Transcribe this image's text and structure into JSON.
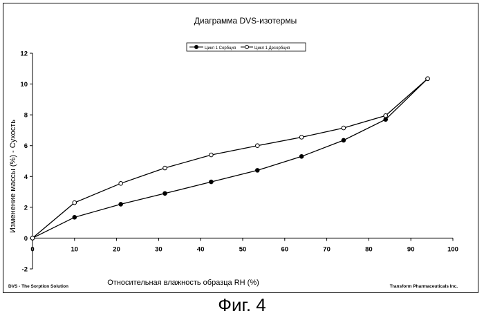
{
  "chart_data": {
    "type": "line",
    "title": "Диаграмма DVS-изотермы",
    "xlabel": "Относительная влажность образца RH  (%)",
    "ylabel": "Изменение массы  (%)  - Сухость",
    "xlim": [
      0,
      100
    ],
    "ylim": [
      -2,
      12
    ],
    "x_ticks": [
      0,
      10,
      20,
      30,
      40,
      50,
      60,
      70,
      80,
      90,
      100
    ],
    "y_ticks": [
      -2,
      0,
      2,
      4,
      6,
      8,
      10,
      12
    ],
    "grid": false,
    "legend_position": "top-center",
    "series": [
      {
        "name": "Цикл 1 Сорбция",
        "marker": "filled-circle",
        "color": "#000000",
        "x": [
          0,
          10,
          21,
          31.5,
          42.5,
          53.5,
          64,
          74,
          84,
          94
        ],
        "y": [
          0,
          1.35,
          2.2,
          2.9,
          3.65,
          4.4,
          5.3,
          6.35,
          7.7,
          10.35
        ]
      },
      {
        "name": "Цикл 1 Десорбция",
        "marker": "open-circle",
        "color": "#000000",
        "x": [
          0,
          10,
          21,
          31.5,
          42.5,
          53.5,
          64,
          74,
          84,
          94
        ],
        "y": [
          0,
          2.3,
          3.55,
          4.55,
          5.4,
          6.0,
          6.55,
          7.15,
          7.95,
          10.35
        ]
      }
    ]
  },
  "footer": {
    "left_note": "DVS - The Sorption Solution",
    "right_note": "Transform Pharmaceuticals Inc."
  },
  "caption": "Фиг. 4"
}
